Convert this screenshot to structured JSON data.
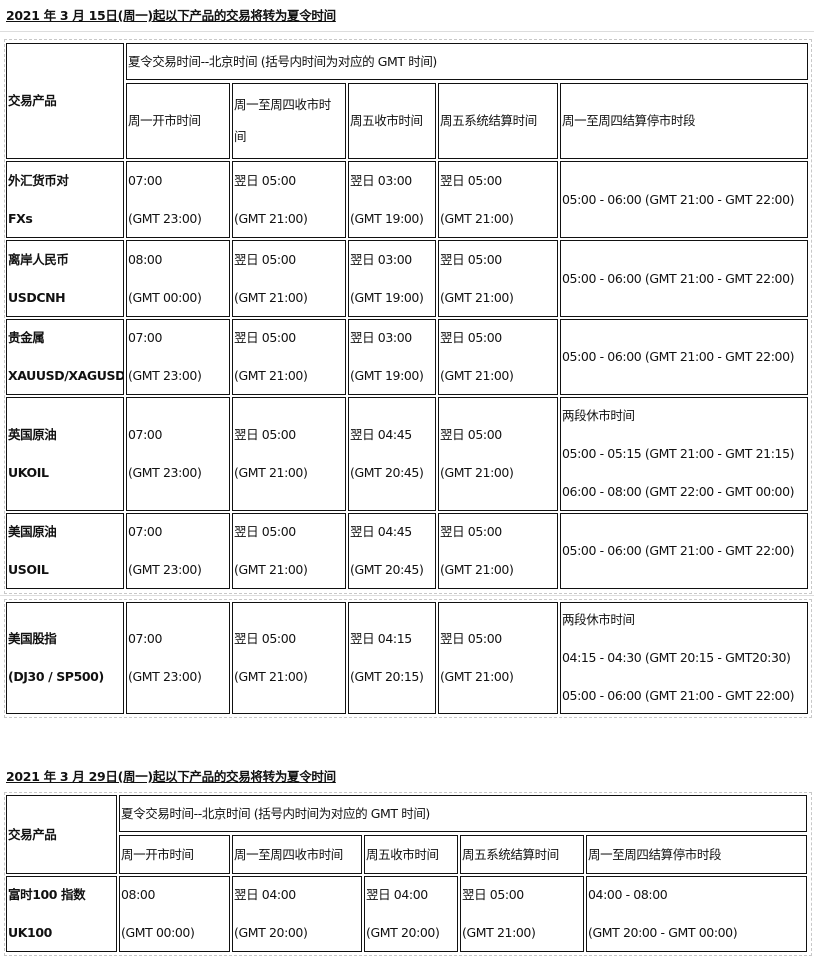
{
  "section1": {
    "title": "2021 年 3 月 15日(周一)起以下产品的交易将转为夏令时间",
    "product_header": "交易产品",
    "group_header": "夏令交易时间--北京时间 (括号内时间为对应的 GMT 时间)",
    "columns": [
      "周一开市时间",
      "周一至周四收市时|间",
      "周五收市时间",
      "周五系统结算时间",
      "周一至周四结算停市时段"
    ],
    "rows": [
      {
        "product": [
          "外汇货币对",
          "FXs"
        ],
        "cells": [
          [
            "07:00",
            "(GMT 23:00)"
          ],
          [
            "翌日 05:00",
            "(GMT 21:00)"
          ],
          [
            "翌日 03:00",
            "(GMT 19:00)"
          ],
          [
            "翌日 05:00",
            "(GMT 21:00)"
          ],
          [
            "05:00 - 06:00 (GMT 21:00 - GMT 22:00)"
          ]
        ]
      },
      {
        "product": [
          "离岸人民币",
          "USDCNH"
        ],
        "cells": [
          [
            "08:00",
            "(GMT 00:00)"
          ],
          [
            "翌日 05:00",
            "(GMT 21:00)"
          ],
          [
            "翌日 03:00",
            "(GMT 19:00)"
          ],
          [
            "翌日 05:00",
            "(GMT 21:00)"
          ],
          [
            "05:00 - 06:00 (GMT 21:00 - GMT 22:00)"
          ]
        ]
      },
      {
        "product": [
          "贵金属",
          "XAUUSD/XAGUSD"
        ],
        "cells": [
          [
            "07:00",
            "(GMT 23:00)"
          ],
          [
            "翌日 05:00",
            "(GMT 21:00)"
          ],
          [
            "翌日 03:00",
            "(GMT 19:00)"
          ],
          [
            "翌日 05:00",
            "(GMT 21:00)"
          ],
          [
            "05:00 - 06:00 (GMT 21:00 - GMT 22:00)"
          ]
        ]
      },
      {
        "product": [
          "英国原油",
          "UKOIL"
        ],
        "cells": [
          [
            "07:00",
            "(GMT 23:00)"
          ],
          [
            "翌日  05:00",
            "(GMT 21:00)"
          ],
          [
            "翌日  04:45",
            "(GMT 20:45)"
          ],
          [
            "翌日 05:00",
            "(GMT 21:00)"
          ],
          [
            "两段休市时间",
            "05:00 - 05:15 (GMT 21:00 - GMT 21:15)",
            "06:00 - 08:00 (GMT 22:00 - GMT 00:00)"
          ]
        ]
      },
      {
        "product": [
          "美国原油",
          "USOIL"
        ],
        "cells": [
          [
            "07:00",
            "(GMT 23:00)"
          ],
          [
            "翌日  05:00",
            "(GMT 21:00)"
          ],
          [
            "翌日  04:45",
            "(GMT 20:45)"
          ],
          [
            "翌日 05:00",
            "(GMT 21:00)"
          ],
          [
            "05:00 - 06:00 (GMT 21:00 - GMT 22:00)"
          ]
        ]
      }
    ],
    "extra_row": {
      "product": [
        "美国股指",
        "(DJ30 / SP500)"
      ],
      "cells": [
        [
          "07:00",
          "(GMT 23:00)"
        ],
        [
          "翌日  05:00",
          "(GMT 21:00)"
        ],
        [
          "翌日  04:15",
          "(GMT 20:15)"
        ],
        [
          "翌日 05:00",
          "(GMT 21:00)"
        ],
        [
          "两段休市时间",
          "04:15 - 04:30 (GMT 20:15 - GMT20:30)",
          "05:00 - 06:00 (GMT 21:00 - GMT 22:00)"
        ]
      ]
    }
  },
  "section2": {
    "title": "2021 年 3 月 29日(周一)起以下产品的交易将转为夏令时间",
    "product_header": "交易产品",
    "group_header": "夏令交易时间--北京时间 (括号内时间为对应的 GMT 时间)",
    "columns": [
      "周一开市时间",
      "周一至周四收市时间",
      "周五收市时间",
      "周五系统结算时间",
      "周一至周四结算停市时段"
    ],
    "rows": [
      {
        "product": [
          "富时100 指数",
          "UK100"
        ],
        "cells": [
          [
            "08:00",
            "(GMT 00:00)"
          ],
          [
            "翌日  04:00",
            "(GMT 20:00)"
          ],
          [
            "翌日  04:00",
            "(GMT 20:00)"
          ],
          [
            "翌日 05:00",
            "(GMT 21:00)"
          ],
          [
            "04:00 - 08:00",
            "(GMT 20:00 - GMT 00:00)"
          ]
        ]
      }
    ]
  }
}
